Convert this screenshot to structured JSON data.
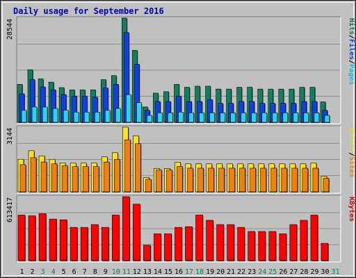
{
  "chart_data": {
    "type": "bar",
    "title": "Daily usage for September 2016",
    "categories": [
      "1",
      "2",
      "3",
      "4",
      "5",
      "6",
      "7",
      "8",
      "9",
      "10",
      "11",
      "12",
      "13",
      "14",
      "15",
      "16",
      "17",
      "18",
      "19",
      "20",
      "21",
      "22",
      "23",
      "24",
      "25",
      "26",
      "27",
      "28",
      "29",
      "30",
      "31"
    ],
    "weekend_days": [
      3,
      4,
      10,
      11,
      17,
      18,
      24,
      25,
      31
    ],
    "panels": [
      {
        "id": "hits",
        "max_label": "28544",
        "ylim": [
          0,
          28544
        ],
        "legend": [
          "Pages",
          "/",
          "Files",
          "/",
          "Hits"
        ],
        "legend_colors": [
          "#00c8e0",
          "#000000",
          "#0040ff",
          "#000000",
          "#007a50"
        ],
        "series": [
          {
            "name": "Hits",
            "color": "#108060",
            "values": [
              10400,
              14400,
              11900,
              11000,
              9500,
              8900,
              8900,
              8900,
              11700,
              12800,
              28544,
              19700,
              4200,
              8000,
              8400,
              10400,
              9600,
              9900,
              9900,
              9100,
              9100,
              9600,
              9600,
              9100,
              9100,
              9100,
              9100,
              9600,
              9600,
              5600,
              0
            ]
          },
          {
            "name": "Files",
            "color": "#1040e0",
            "values": [
              7800,
              11700,
              9700,
              8900,
              7600,
              7200,
              7200,
              6900,
              9400,
              10400,
              24600,
              15900,
              3300,
              5700,
              5700,
              7200,
              5700,
              5700,
              6200,
              5200,
              5200,
              5700,
              5700,
              5200,
              5200,
              5200,
              5200,
              5700,
              5700,
              3300,
              0
            ]
          },
          {
            "name": "Pages",
            "color": "#30d0f0",
            "values": [
              3300,
              4200,
              4200,
              3800,
              3300,
              2800,
              2800,
              2800,
              3300,
              3800,
              7600,
              5400,
              1900,
              2600,
              2600,
              2800,
              2600,
              2600,
              2600,
              2600,
              2600,
              2600,
              2600,
              2600,
              2600,
              2600,
              2600,
              2600,
              2600,
              1900,
              0
            ]
          }
        ]
      },
      {
        "id": "visits",
        "max_label": "3144",
        "ylim": [
          0,
          3144
        ],
        "legend": [
          "Sites",
          "/",
          "Visits"
        ],
        "legend_colors": [
          "#ff8000",
          "#000000",
          "#e0e000"
        ],
        "series": [
          {
            "name": "Visits",
            "color": "#ffe020",
            "values": [
              1580,
              2000,
              1750,
              1580,
              1400,
              1400,
              1400,
              1400,
              1700,
              1900,
              3144,
              2720,
              700,
              1140,
              1140,
              1440,
              1360,
              1360,
              1360,
              1360,
              1360,
              1360,
              1360,
              1360,
              1360,
              1360,
              1360,
              1360,
              1400,
              750,
              0
            ]
          },
          {
            "name": "Sites",
            "color": "#f08010",
            "values": [
              1320,
              1660,
              1450,
              1360,
              1270,
              1230,
              1230,
              1230,
              1450,
              1580,
              2530,
              2340,
              610,
              1060,
              1060,
              1230,
              1150,
              1150,
              1150,
              1150,
              1150,
              1150,
              1150,
              1150,
              1150,
              1150,
              1150,
              1150,
              1150,
              660,
              0
            ]
          }
        ]
      },
      {
        "id": "kbytes",
        "max_label": "613417",
        "ylim": [
          0,
          613417
        ],
        "legend": [
          "KBytes"
        ],
        "legend_colors": [
          "#e00000"
        ],
        "series": [
          {
            "name": "KBytes",
            "color": "#ff0000",
            "values": [
              437000,
              430000,
              451000,
              399000,
              392000,
              319000,
              319000,
              346000,
              319000,
              437000,
              613417,
              542000,
              148000,
              258000,
              258000,
              319000,
              326000,
              437000,
              387000,
              346000,
              346000,
              319000,
              280000,
              280000,
              280000,
              258000,
              346000,
              387000,
              437000,
              166000,
              0
            ]
          }
        ]
      }
    ]
  }
}
